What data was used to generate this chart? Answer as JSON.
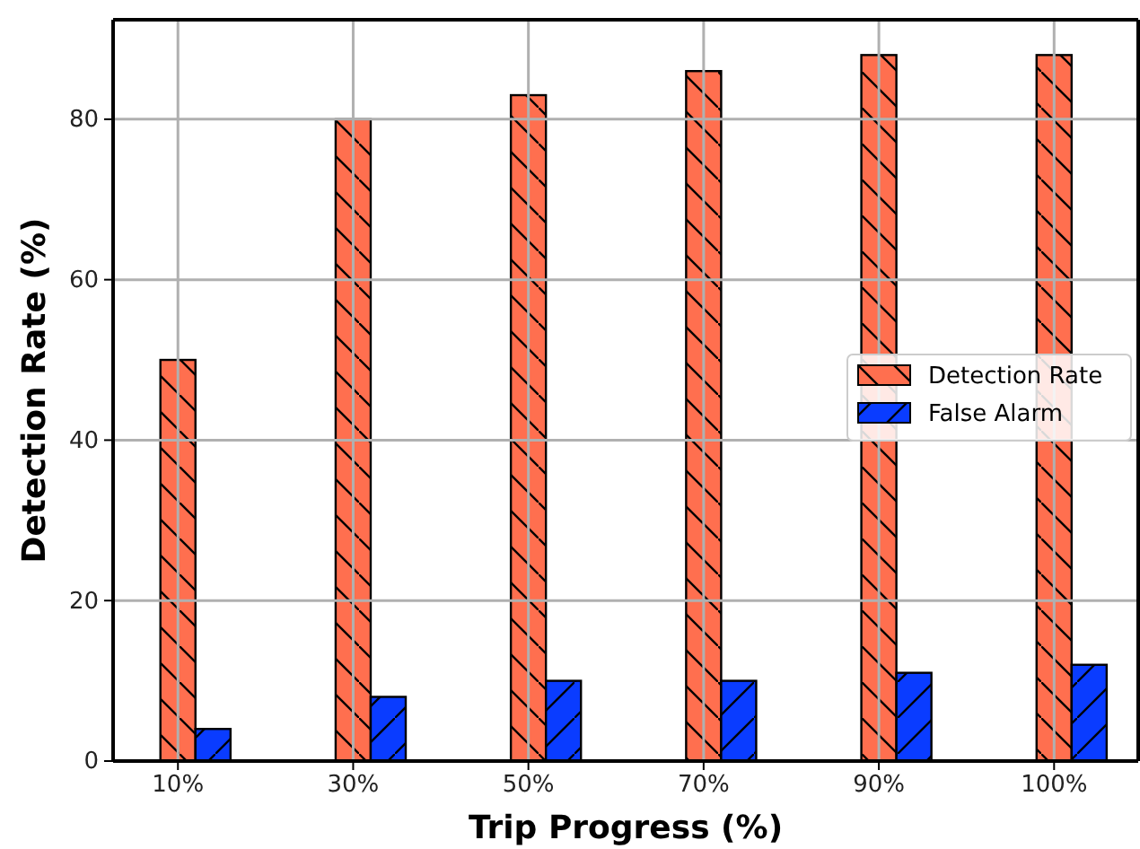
{
  "chart_data": {
    "type": "bar",
    "xlabel": "Trip Progress (%)",
    "ylabel": "Detection Rate (%)",
    "categories": [
      "10%",
      "30%",
      "50%",
      "70%",
      "90%",
      "100%"
    ],
    "series": [
      {
        "name": "Detection Rate",
        "color": "#ff6f4f",
        "values": [
          50,
          80,
          83,
          86,
          88,
          88
        ]
      },
      {
        "name": "False Alarm",
        "color": "#0a3cff",
        "values": [
          4,
          8,
          10,
          10,
          11,
          12
        ]
      }
    ],
    "ylim": [
      0,
      92.4
    ],
    "yticks": [
      0,
      20,
      40,
      60,
      80
    ],
    "grid": true,
    "legend": "right"
  }
}
